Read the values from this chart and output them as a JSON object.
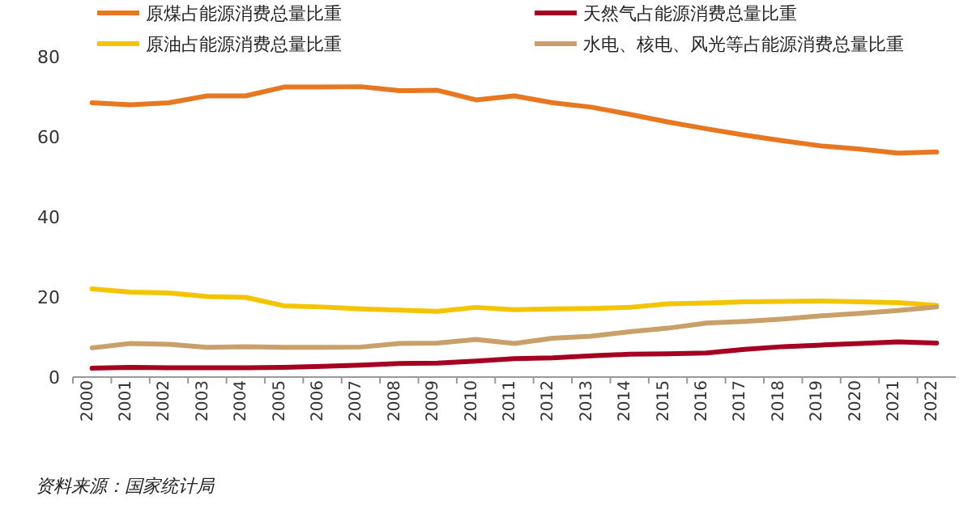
{
  "chart_data": {
    "type": "line",
    "categories": [
      "2000",
      "2001",
      "2002",
      "2003",
      "2004",
      "2005",
      "2006",
      "2007",
      "2008",
      "2009",
      "2010",
      "2011",
      "2012",
      "2013",
      "2014",
      "2015",
      "2016",
      "2017",
      "2018",
      "2019",
      "2020",
      "2021",
      "2022"
    ],
    "series": [
      {
        "name": "原煤占能源消费总量比重",
        "color": "#e87722",
        "values": [
          68.5,
          68.0,
          68.5,
          70.2,
          70.2,
          72.4,
          72.4,
          72.5,
          71.5,
          71.6,
          69.2,
          70.2,
          68.5,
          67.4,
          65.6,
          63.7,
          62.0,
          60.4,
          59.0,
          57.7,
          56.9,
          55.9,
          56.2
        ]
      },
      {
        "name": "天然气占能源消费总量比重",
        "color": "#a50021",
        "values": [
          2.2,
          2.4,
          2.3,
          2.3,
          2.3,
          2.4,
          2.7,
          3.0,
          3.4,
          3.5,
          4.0,
          4.6,
          4.8,
          5.3,
          5.7,
          5.8,
          6.0,
          6.9,
          7.6,
          8.0,
          8.4,
          8.8,
          8.5
        ]
      },
      {
        "name": "原油占能源消费总量比重",
        "color": "#f5c400",
        "values": [
          22.0,
          21.2,
          21.0,
          20.1,
          19.9,
          17.8,
          17.5,
          17.0,
          16.7,
          16.4,
          17.4,
          16.8,
          17.0,
          17.1,
          17.4,
          18.3,
          18.5,
          18.8,
          18.9,
          19.0,
          18.8,
          18.6,
          17.9
        ]
      },
      {
        "name": "水电、核电、风光等占能源消费总量比重",
        "color": "#c9a06a",
        "values": [
          7.3,
          8.4,
          8.2,
          7.4,
          7.6,
          7.4,
          7.4,
          7.5,
          8.4,
          8.5,
          9.4,
          8.4,
          9.7,
          10.2,
          11.3,
          12.2,
          13.5,
          13.9,
          14.5,
          15.3,
          15.9,
          16.6,
          17.5
        ]
      }
    ],
    "ylim": [
      0,
      80
    ],
    "yticks": [
      0,
      20,
      40,
      60,
      80
    ],
    "legend": "top",
    "marker": "none",
    "grid": false,
    "annotations": [
      "资料来源：国家统计局"
    ]
  }
}
